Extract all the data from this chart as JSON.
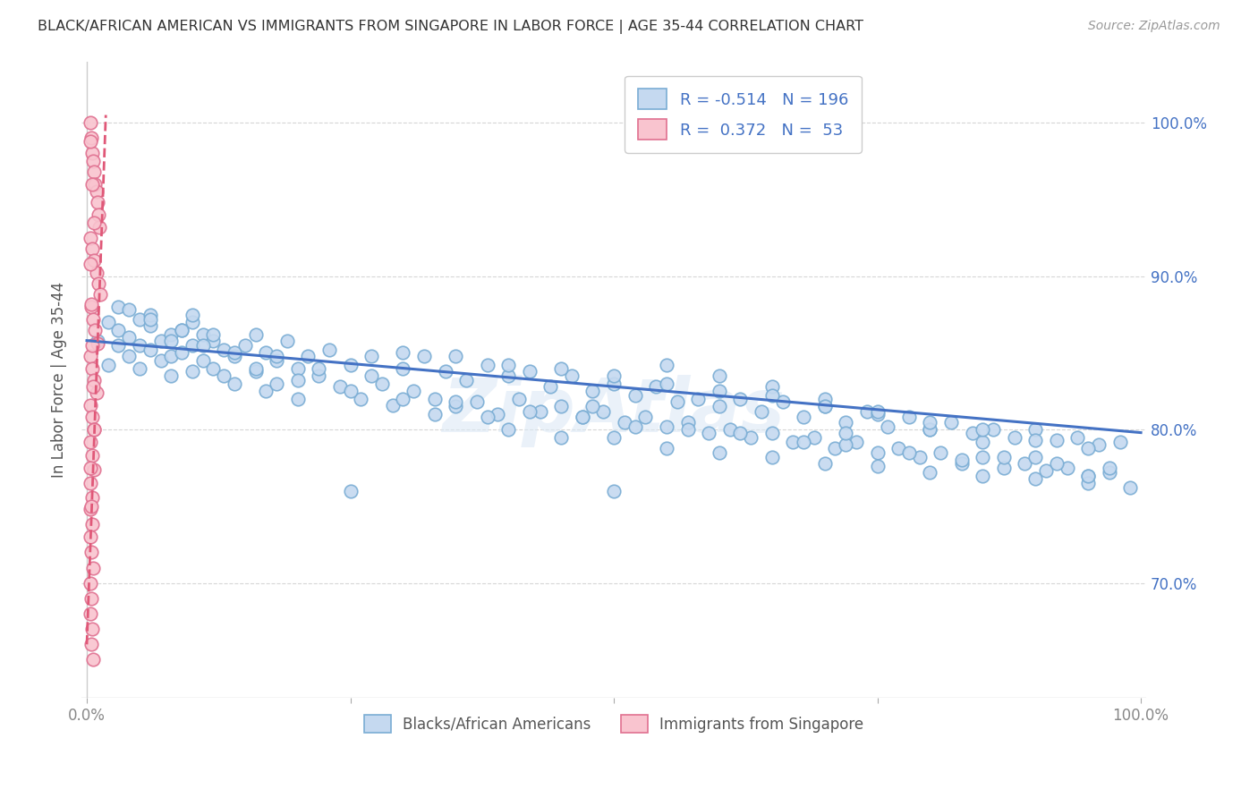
{
  "title": "BLACK/AFRICAN AMERICAN VS IMMIGRANTS FROM SINGAPORE IN LABOR FORCE | AGE 35-44 CORRELATION CHART",
  "source": "Source: ZipAtlas.com",
  "ylabel": "In Labor Force | Age 35-44",
  "ytick_labels": [
    "70.0%",
    "80.0%",
    "90.0%",
    "100.0%"
  ],
  "ytick_values": [
    0.7,
    0.8,
    0.9,
    1.0
  ],
  "legend_blue_R": "-0.514",
  "legend_blue_N": "196",
  "legend_pink_R": "0.372",
  "legend_pink_N": "53",
  "legend_blue_label": "Blacks/African Americans",
  "legend_pink_label": "Immigrants from Singapore",
  "blue_fill_color": "#c5d9f0",
  "blue_edge_color": "#7aadd4",
  "blue_line_color": "#4472c4",
  "pink_fill_color": "#f9c4cf",
  "pink_edge_color": "#e07090",
  "pink_line_color": "#e05878",
  "background_color": "#ffffff",
  "grid_color": "#cccccc",
  "right_tick_color": "#4472c4",
  "watermark": "ZipAtlas",
  "blue_scatter_x": [
    0.01,
    0.02,
    0.02,
    0.03,
    0.03,
    0.03,
    0.04,
    0.04,
    0.05,
    0.05,
    0.05,
    0.06,
    0.06,
    0.06,
    0.07,
    0.07,
    0.08,
    0.08,
    0.08,
    0.09,
    0.09,
    0.1,
    0.1,
    0.1,
    0.11,
    0.11,
    0.12,
    0.12,
    0.13,
    0.13,
    0.14,
    0.14,
    0.15,
    0.16,
    0.16,
    0.17,
    0.17,
    0.18,
    0.18,
    0.19,
    0.2,
    0.2,
    0.21,
    0.22,
    0.23,
    0.24,
    0.25,
    0.26,
    0.27,
    0.28,
    0.29,
    0.3,
    0.31,
    0.32,
    0.33,
    0.34,
    0.35,
    0.36,
    0.37,
    0.38,
    0.39,
    0.4,
    0.41,
    0.42,
    0.43,
    0.44,
    0.45,
    0.46,
    0.47,
    0.48,
    0.49,
    0.5,
    0.51,
    0.52,
    0.53,
    0.54,
    0.55,
    0.56,
    0.57,
    0.58,
    0.59,
    0.6,
    0.61,
    0.62,
    0.63,
    0.64,
    0.65,
    0.66,
    0.67,
    0.68,
    0.69,
    0.7,
    0.71,
    0.72,
    0.73,
    0.74,
    0.75,
    0.76,
    0.77,
    0.78,
    0.79,
    0.8,
    0.81,
    0.82,
    0.83,
    0.84,
    0.85,
    0.86,
    0.87,
    0.88,
    0.89,
    0.9,
    0.91,
    0.92,
    0.93,
    0.94,
    0.95,
    0.96,
    0.97,
    0.98,
    0.04,
    0.06,
    0.08,
    0.09,
    0.1,
    0.11,
    0.12,
    0.14,
    0.16,
    0.18,
    0.2,
    0.22,
    0.25,
    0.27,
    0.3,
    0.33,
    0.35,
    0.38,
    0.4,
    0.42,
    0.45,
    0.47,
    0.5,
    0.52,
    0.55,
    0.57,
    0.6,
    0.62,
    0.65,
    0.68,
    0.7,
    0.72,
    0.75,
    0.78,
    0.8,
    0.83,
    0.85,
    0.87,
    0.9,
    0.92,
    0.95,
    0.97,
    0.99,
    0.5,
    0.55,
    0.6,
    0.65,
    0.7,
    0.75,
    0.8,
    0.85,
    0.9,
    0.95,
    0.3,
    0.4,
    0.5,
    0.6,
    0.7,
    0.8,
    0.9,
    0.35,
    0.45,
    0.55,
    0.65,
    0.75,
    0.85,
    0.95,
    0.25,
    0.48,
    0.72
  ],
  "blue_scatter_y": [
    0.858,
    0.87,
    0.842,
    0.865,
    0.855,
    0.88,
    0.86,
    0.848,
    0.872,
    0.855,
    0.84,
    0.868,
    0.852,
    0.875,
    0.858,
    0.845,
    0.862,
    0.848,
    0.835,
    0.865,
    0.85,
    0.87,
    0.855,
    0.838,
    0.862,
    0.845,
    0.858,
    0.84,
    0.852,
    0.835,
    0.848,
    0.83,
    0.855,
    0.862,
    0.838,
    0.85,
    0.825,
    0.845,
    0.83,
    0.858,
    0.84,
    0.82,
    0.848,
    0.835,
    0.852,
    0.828,
    0.842,
    0.82,
    0.848,
    0.83,
    0.816,
    0.84,
    0.825,
    0.848,
    0.82,
    0.838,
    0.815,
    0.832,
    0.818,
    0.842,
    0.81,
    0.835,
    0.82,
    0.838,
    0.812,
    0.828,
    0.815,
    0.835,
    0.808,
    0.825,
    0.812,
    0.83,
    0.805,
    0.822,
    0.808,
    0.828,
    0.802,
    0.818,
    0.805,
    0.82,
    0.798,
    0.815,
    0.8,
    0.82,
    0.795,
    0.812,
    0.798,
    0.818,
    0.792,
    0.808,
    0.795,
    0.815,
    0.788,
    0.805,
    0.792,
    0.812,
    0.785,
    0.802,
    0.788,
    0.808,
    0.782,
    0.8,
    0.785,
    0.805,
    0.778,
    0.798,
    0.782,
    0.8,
    0.775,
    0.795,
    0.778,
    0.8,
    0.773,
    0.793,
    0.775,
    0.795,
    0.77,
    0.79,
    0.772,
    0.792,
    0.878,
    0.872,
    0.858,
    0.865,
    0.875,
    0.855,
    0.862,
    0.85,
    0.84,
    0.848,
    0.832,
    0.84,
    0.825,
    0.835,
    0.82,
    0.81,
    0.818,
    0.808,
    0.8,
    0.812,
    0.795,
    0.808,
    0.795,
    0.802,
    0.788,
    0.8,
    0.785,
    0.798,
    0.782,
    0.792,
    0.778,
    0.79,
    0.776,
    0.785,
    0.772,
    0.78,
    0.77,
    0.782,
    0.768,
    0.778,
    0.765,
    0.775,
    0.762,
    0.76,
    0.842,
    0.835,
    0.828,
    0.82,
    0.81,
    0.8,
    0.792,
    0.782,
    0.77,
    0.85,
    0.842,
    0.835,
    0.825,
    0.815,
    0.805,
    0.793,
    0.848,
    0.84,
    0.83,
    0.822,
    0.812,
    0.8,
    0.788,
    0.76,
    0.815,
    0.798
  ],
  "pink_scatter_x": [
    0.003,
    0.004,
    0.005,
    0.006,
    0.007,
    0.008,
    0.009,
    0.01,
    0.011,
    0.012,
    0.003,
    0.005,
    0.007,
    0.009,
    0.011,
    0.013,
    0.004,
    0.006,
    0.008,
    0.01,
    0.003,
    0.005,
    0.007,
    0.009,
    0.003,
    0.005,
    0.007,
    0.003,
    0.005,
    0.007,
    0.003,
    0.005,
    0.003,
    0.005,
    0.003,
    0.004,
    0.006,
    0.003,
    0.004,
    0.003,
    0.005,
    0.004,
    0.006,
    0.003,
    0.005,
    0.007,
    0.003,
    0.004,
    0.005,
    0.006,
    0.007,
    0.003,
    0.004
  ],
  "pink_scatter_y": [
    1.0,
    0.99,
    0.98,
    0.975,
    0.968,
    0.96,
    0.955,
    0.948,
    0.94,
    0.932,
    0.925,
    0.918,
    0.91,
    0.902,
    0.895,
    0.888,
    0.88,
    0.872,
    0.865,
    0.856,
    0.848,
    0.84,
    0.832,
    0.824,
    0.816,
    0.808,
    0.8,
    0.792,
    0.783,
    0.774,
    0.765,
    0.756,
    0.748,
    0.738,
    0.73,
    0.72,
    0.71,
    0.7,
    0.69,
    0.68,
    0.67,
    0.66,
    0.65,
    0.988,
    0.96,
    0.935,
    0.908,
    0.882,
    0.855,
    0.828,
    0.8,
    0.775,
    0.75
  ],
  "blue_trend_x": [
    0.0,
    1.0
  ],
  "blue_trend_y": [
    0.858,
    0.798
  ],
  "pink_trend_x": [
    0.0,
    0.018
  ],
  "pink_trend_y": [
    0.66,
    1.005
  ],
  "xlim": [
    -0.005,
    1.005
  ],
  "ylim": [
    0.625,
    1.04
  ]
}
